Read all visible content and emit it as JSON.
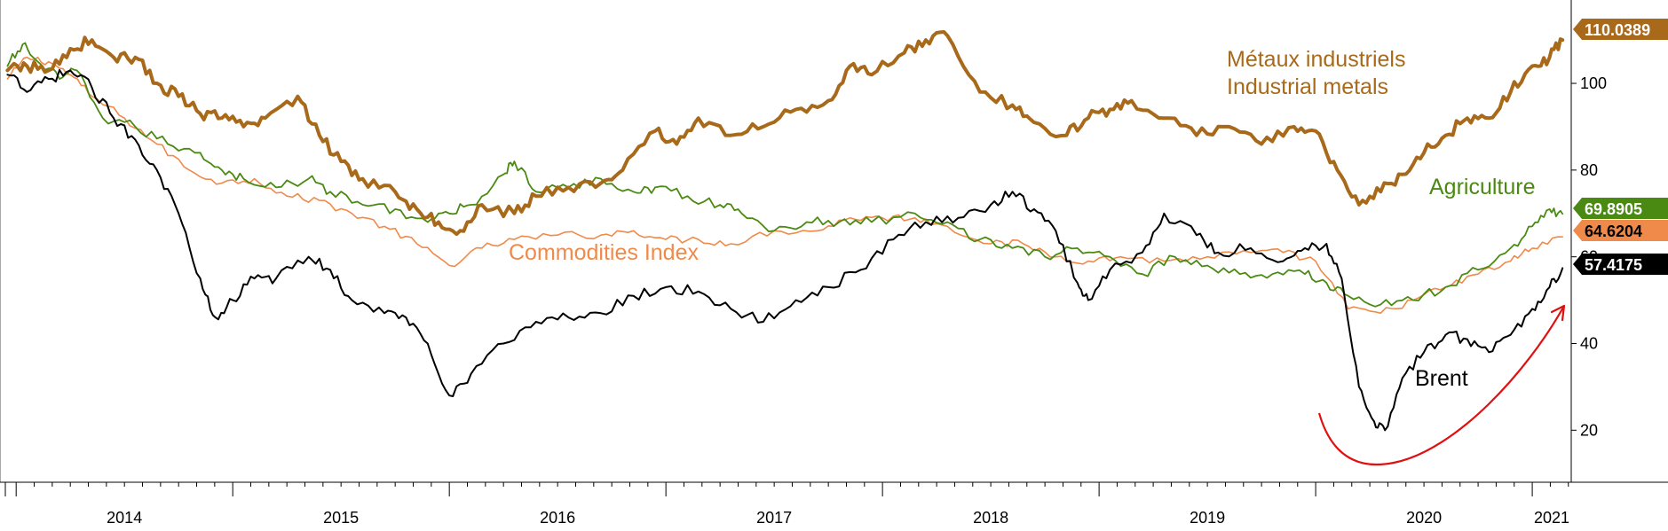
{
  "chart_data": {
    "type": "line",
    "ylim": [
      8,
      118
    ],
    "y_ticks": [
      20,
      40,
      60,
      80,
      100
    ],
    "y_axis_side": "right",
    "grid": false,
    "legend": "none",
    "x_range": [
      2013.95,
      2021.18
    ],
    "x_tick_labels": [
      {
        "label": "2014",
        "x": 2014.0
      },
      {
        "label": "2015",
        "x": 2015.0
      },
      {
        "label": "2016",
        "x": 2016.0
      },
      {
        "label": "2017",
        "x": 2017.0
      },
      {
        "label": "2018",
        "x": 2018.0
      },
      {
        "label": "2019",
        "x": 2019.0
      },
      {
        "label": "2020",
        "x": 2020.0
      },
      {
        "label": "2021",
        "x": 2021.0
      }
    ],
    "series": [
      {
        "name": "Métaux industriels / Industrial metals",
        "key": "metals",
        "color": "#a86a1a",
        "last_value": "110.0389",
        "points": [
          [
            2013.96,
            103
          ],
          [
            2014.05,
            104
          ],
          [
            2014.15,
            103
          ],
          [
            2014.25,
            108
          ],
          [
            2014.35,
            110
          ],
          [
            2014.45,
            106
          ],
          [
            2014.55,
            106
          ],
          [
            2014.65,
            100
          ],
          [
            2014.75,
            97
          ],
          [
            2014.85,
            93
          ],
          [
            2014.95,
            92
          ],
          [
            2015.05,
            90
          ],
          [
            2015.15,
            92
          ],
          [
            2015.3,
            97
          ],
          [
            2015.4,
            88
          ],
          [
            2015.5,
            82
          ],
          [
            2015.6,
            78
          ],
          [
            2015.75,
            75
          ],
          [
            2015.85,
            71
          ],
          [
            2015.95,
            68
          ],
          [
            2016.05,
            66
          ],
          [
            2016.15,
            72
          ],
          [
            2016.3,
            70
          ],
          [
            2016.4,
            74
          ],
          [
            2016.55,
            76
          ],
          [
            2016.7,
            77
          ],
          [
            2016.8,
            80
          ],
          [
            2016.95,
            89
          ],
          [
            2017.05,
            86
          ],
          [
            2017.15,
            92
          ],
          [
            2017.3,
            88
          ],
          [
            2017.45,
            90
          ],
          [
            2017.6,
            94
          ],
          [
            2017.75,
            96
          ],
          [
            2017.85,
            104
          ],
          [
            2017.95,
            102
          ],
          [
            2018.1,
            107
          ],
          [
            2018.2,
            110
          ],
          [
            2018.3,
            111
          ],
          [
            2018.45,
            98
          ],
          [
            2018.6,
            95
          ],
          [
            2018.7,
            91
          ],
          [
            2018.85,
            88
          ],
          [
            2018.95,
            92
          ],
          [
            2019.05,
            94
          ],
          [
            2019.15,
            96
          ],
          [
            2019.3,
            92
          ],
          [
            2019.45,
            88
          ],
          [
            2019.6,
            90
          ],
          [
            2019.75,
            86
          ],
          [
            2019.9,
            90
          ],
          [
            2020.0,
            89
          ],
          [
            2020.1,
            80
          ],
          [
            2020.2,
            72
          ],
          [
            2020.3,
            75
          ],
          [
            2020.4,
            79
          ],
          [
            2020.5,
            84
          ],
          [
            2020.6,
            88
          ],
          [
            2020.7,
            92
          ],
          [
            2020.8,
            92
          ],
          [
            2020.9,
            98
          ],
          [
            2021.0,
            104
          ],
          [
            2021.08,
            106
          ],
          [
            2021.14,
            110
          ]
        ]
      },
      {
        "name": "Agriculture",
        "key": "agriculture",
        "color": "#4a8a12",
        "last_value": "69.8905",
        "points": [
          [
            2013.96,
            104
          ],
          [
            2014.03,
            109
          ],
          [
            2014.1,
            105
          ],
          [
            2014.2,
            101
          ],
          [
            2014.28,
            103
          ],
          [
            2014.4,
            92
          ],
          [
            2014.55,
            90
          ],
          [
            2014.7,
            86
          ],
          [
            2014.85,
            84
          ],
          [
            2014.95,
            80
          ],
          [
            2015.05,
            78
          ],
          [
            2015.2,
            76
          ],
          [
            2015.35,
            78
          ],
          [
            2015.45,
            75
          ],
          [
            2015.6,
            72
          ],
          [
            2015.75,
            71
          ],
          [
            2015.9,
            68
          ],
          [
            2016.0,
            70
          ],
          [
            2016.1,
            72
          ],
          [
            2016.25,
            79
          ],
          [
            2016.3,
            82
          ],
          [
            2016.4,
            75
          ],
          [
            2016.55,
            76
          ],
          [
            2016.7,
            78
          ],
          [
            2016.85,
            75
          ],
          [
            2016.95,
            76
          ],
          [
            2017.1,
            74
          ],
          [
            2017.25,
            72
          ],
          [
            2017.35,
            70
          ],
          [
            2017.5,
            66
          ],
          [
            2017.65,
            68
          ],
          [
            2017.8,
            68
          ],
          [
            2017.95,
            68
          ],
          [
            2018.15,
            70
          ],
          [
            2018.3,
            68
          ],
          [
            2018.45,
            64
          ],
          [
            2018.6,
            62
          ],
          [
            2018.75,
            60
          ],
          [
            2018.9,
            62
          ],
          [
            2019.05,
            60
          ],
          [
            2019.2,
            56
          ],
          [
            2019.35,
            60
          ],
          [
            2019.5,
            58
          ],
          [
            2019.65,
            56
          ],
          [
            2019.8,
            56
          ],
          [
            2019.95,
            56
          ],
          [
            2020.05,
            54
          ],
          [
            2020.15,
            51
          ],
          [
            2020.3,
            49
          ],
          [
            2020.45,
            50
          ],
          [
            2020.6,
            53
          ],
          [
            2020.75,
            57
          ],
          [
            2020.9,
            62
          ],
          [
            2021.0,
            67
          ],
          [
            2021.08,
            71
          ],
          [
            2021.14,
            69.9
          ]
        ]
      },
      {
        "name": "Commodities Index",
        "key": "index",
        "color": "#f08a4b",
        "last_value": "64.6204",
        "points": [
          [
            2013.96,
            101
          ],
          [
            2014.05,
            106
          ],
          [
            2014.15,
            105
          ],
          [
            2014.25,
            102
          ],
          [
            2014.35,
            97
          ],
          [
            2014.5,
            92
          ],
          [
            2014.65,
            86
          ],
          [
            2014.8,
            80
          ],
          [
            2014.95,
            77
          ],
          [
            2015.1,
            78
          ],
          [
            2015.25,
            74
          ],
          [
            2015.4,
            73
          ],
          [
            2015.55,
            70
          ],
          [
            2015.7,
            67
          ],
          [
            2015.85,
            63
          ],
          [
            2016.0,
            58
          ],
          [
            2016.15,
            62
          ],
          [
            2016.3,
            64
          ],
          [
            2016.5,
            65
          ],
          [
            2016.7,
            65
          ],
          [
            2016.85,
            66
          ],
          [
            2017.0,
            64
          ],
          [
            2017.15,
            64
          ],
          [
            2017.3,
            63
          ],
          [
            2017.5,
            66
          ],
          [
            2017.7,
            66
          ],
          [
            2017.85,
            69
          ],
          [
            2018.0,
            69
          ],
          [
            2018.15,
            69
          ],
          [
            2018.3,
            67
          ],
          [
            2018.5,
            63
          ],
          [
            2018.65,
            63
          ],
          [
            2018.8,
            60
          ],
          [
            2018.95,
            59
          ],
          [
            2019.1,
            60
          ],
          [
            2019.3,
            59
          ],
          [
            2019.5,
            60
          ],
          [
            2019.7,
            61
          ],
          [
            2019.85,
            61
          ],
          [
            2020.0,
            59
          ],
          [
            2020.15,
            48
          ],
          [
            2020.3,
            47
          ],
          [
            2020.45,
            50
          ],
          [
            2020.6,
            53
          ],
          [
            2020.75,
            56
          ],
          [
            2020.9,
            59
          ],
          [
            2021.0,
            62
          ],
          [
            2021.14,
            64.6
          ]
        ]
      },
      {
        "name": "Brent",
        "key": "brent",
        "color": "#000000",
        "last_value": "57.4175",
        "points": [
          [
            2013.96,
            102
          ],
          [
            2014.05,
            98
          ],
          [
            2014.15,
            101
          ],
          [
            2014.25,
            103
          ],
          [
            2014.35,
            99
          ],
          [
            2014.45,
            92
          ],
          [
            2014.55,
            87
          ],
          [
            2014.65,
            80
          ],
          [
            2014.75,
            70
          ],
          [
            2014.85,
            55
          ],
          [
            2014.92,
            46
          ],
          [
            2015.0,
            50
          ],
          [
            2015.1,
            55
          ],
          [
            2015.2,
            55
          ],
          [
            2015.35,
            60
          ],
          [
            2015.45,
            57
          ],
          [
            2015.55,
            50
          ],
          [
            2015.7,
            47
          ],
          [
            2015.8,
            46
          ],
          [
            2015.9,
            40
          ],
          [
            2016.0,
            28
          ],
          [
            2016.1,
            33
          ],
          [
            2016.25,
            40
          ],
          [
            2016.4,
            45
          ],
          [
            2016.55,
            46
          ],
          [
            2016.7,
            47
          ],
          [
            2016.85,
            51
          ],
          [
            2017.0,
            53
          ],
          [
            2017.15,
            52
          ],
          [
            2017.3,
            48
          ],
          [
            2017.45,
            45
          ],
          [
            2017.6,
            50
          ],
          [
            2017.75,
            53
          ],
          [
            2017.9,
            57
          ],
          [
            2018.05,
            64
          ],
          [
            2018.2,
            68
          ],
          [
            2018.35,
            69
          ],
          [
            2018.5,
            72
          ],
          [
            2018.6,
            75
          ],
          [
            2018.7,
            71
          ],
          [
            2018.8,
            66
          ],
          [
            2018.9,
            54
          ],
          [
            2018.95,
            50
          ],
          [
            2019.05,
            57
          ],
          [
            2019.2,
            61
          ],
          [
            2019.3,
            70
          ],
          [
            2019.45,
            65
          ],
          [
            2019.55,
            61
          ],
          [
            2019.7,
            62
          ],
          [
            2019.85,
            59
          ],
          [
            2019.95,
            62
          ],
          [
            2020.05,
            63
          ],
          [
            2020.12,
            55
          ],
          [
            2020.2,
            30
          ],
          [
            2020.27,
            22
          ],
          [
            2020.32,
            20
          ],
          [
            2020.4,
            32
          ],
          [
            2020.5,
            38
          ],
          [
            2020.6,
            42
          ],
          [
            2020.7,
            41
          ],
          [
            2020.8,
            38
          ],
          [
            2020.9,
            42
          ],
          [
            2021.0,
            48
          ],
          [
            2021.08,
            53
          ],
          [
            2021.14,
            57.4
          ]
        ]
      }
    ],
    "annotations": [
      {
        "key": "metals_line1",
        "text": "Métaux industriels",
        "color": "#a86a1a"
      },
      {
        "key": "metals_line2",
        "text": "Industrial metals",
        "color": "#a86a1a"
      },
      {
        "key": "agriculture",
        "text": "Agriculture",
        "color": "#4a8a12"
      },
      {
        "key": "index",
        "text": "Commodities Index",
        "color": "#f08a4b"
      },
      {
        "key": "brent",
        "text": "Brent",
        "color": "#000000"
      }
    ],
    "highlight_arrow": {
      "color": "#e01010"
    }
  }
}
